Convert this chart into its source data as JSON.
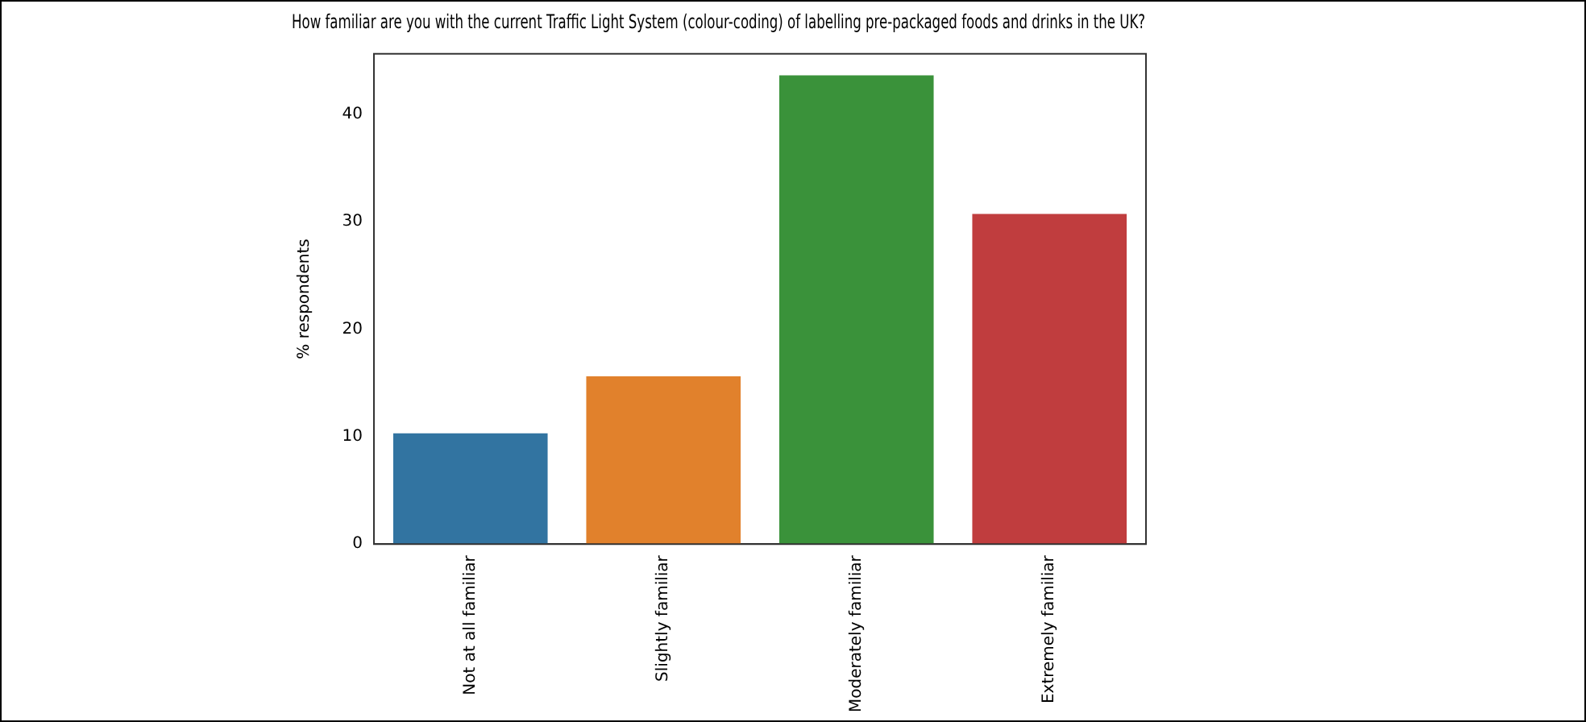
{
  "chart_data": {
    "type": "bar",
    "title": "How familiar are you with the current Traffic Light System (colour-coding) of labelling pre-packaged foods and drinks in the UK?",
    "ylabel": "% respondents",
    "categories": [
      "Not at all familiar",
      "Slightly familiar",
      "Moderately familiar",
      "Extremely familiar"
    ],
    "values": [
      10.3,
      15.6,
      43.6,
      30.7
    ],
    "colors": [
      "#3274a1",
      "#e1812c",
      "#3a923a",
      "#c03d3e"
    ],
    "ylim": [
      0,
      45.6
    ],
    "yticks": [
      0,
      10,
      20,
      30,
      40
    ]
  }
}
